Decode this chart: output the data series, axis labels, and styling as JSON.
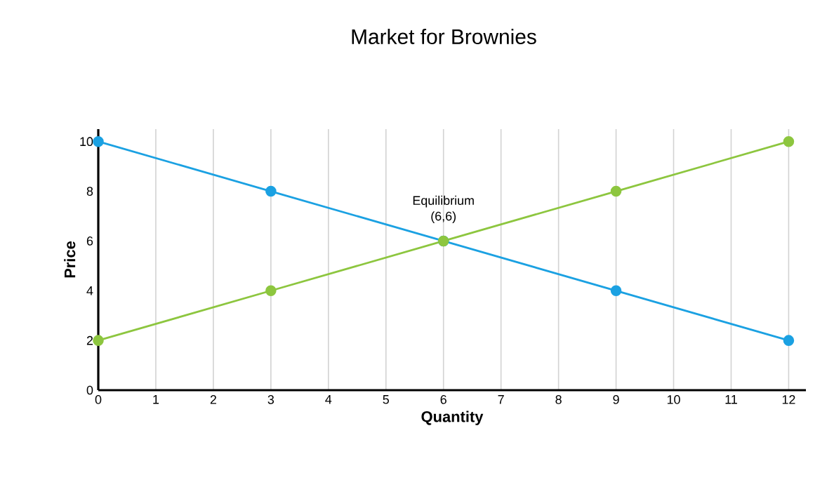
{
  "chart_data": {
    "type": "line",
    "title": "Market for Brownies",
    "xlabel": "Quantity",
    "ylabel": "Price",
    "x": [
      0,
      3,
      6,
      9,
      12
    ],
    "series": [
      {
        "color": "#1ba1e2",
        "values": [
          10,
          8,
          6,
          4,
          2
        ]
      },
      {
        "color": "#8dc63f",
        "values": [
          2,
          4,
          6,
          8,
          10
        ]
      }
    ],
    "xlim": [
      0,
      12.3
    ],
    "ylim": [
      0,
      10.5
    ],
    "xticks": [
      0,
      1,
      2,
      3,
      4,
      5,
      6,
      7,
      8,
      9,
      10,
      11,
      12
    ],
    "yticks": [
      0,
      2,
      4,
      6,
      8,
      10
    ],
    "grid": "x",
    "marker": "circle",
    "annotations": [
      "Equilibrium",
      "(6,6)"
    ]
  }
}
